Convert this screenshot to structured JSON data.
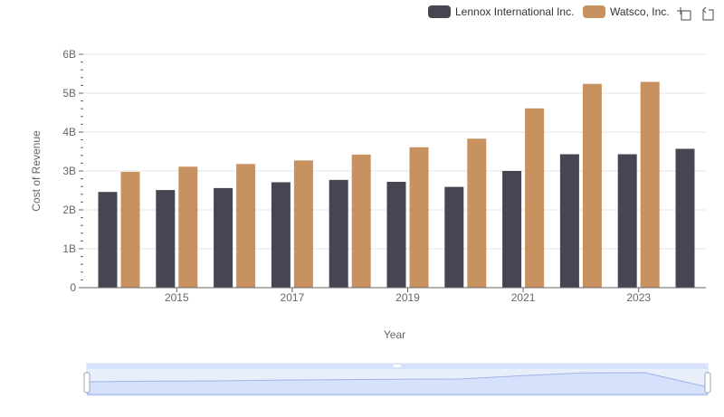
{
  "colors": {
    "lennox": "#464653",
    "watsco": "#c89160",
    "grid": "#e6e6e6",
    "axis": "#666666",
    "zoom_fill": "#d6e1fb",
    "zoom_line": "#9fb4e6"
  },
  "toolbox": [
    "zoom-icon",
    "restore-icon"
  ],
  "chart_data": {
    "type": "bar",
    "xlabel": "Year",
    "ylabel": "Cost of Revenue",
    "ylim": [
      0,
      6000000000
    ],
    "y_ticks": [
      "0",
      "1B",
      "2B",
      "3B",
      "4B",
      "5B",
      "6B"
    ],
    "x_tick_labels": [
      "2015",
      "2017",
      "2019",
      "2021",
      "2023"
    ],
    "categories": [
      "2014",
      "2015",
      "2016",
      "2017",
      "2018",
      "2019",
      "2020",
      "2021",
      "2022",
      "2023",
      "2024"
    ],
    "legend_position": "top-right",
    "grid": true,
    "series": [
      {
        "name": "Lennox International Inc.",
        "values": [
          2460000000,
          2510000000,
          2560000000,
          2710000000,
          2770000000,
          2720000000,
          2590000000,
          3000000000,
          3430000000,
          3430000000,
          3570000000
        ]
      },
      {
        "name": "Watsco, Inc.",
        "values": [
          2980000000,
          3110000000,
          3180000000,
          3270000000,
          3420000000,
          3610000000,
          3830000000,
          4610000000,
          5240000000,
          5290000000,
          null
        ]
      }
    ]
  }
}
